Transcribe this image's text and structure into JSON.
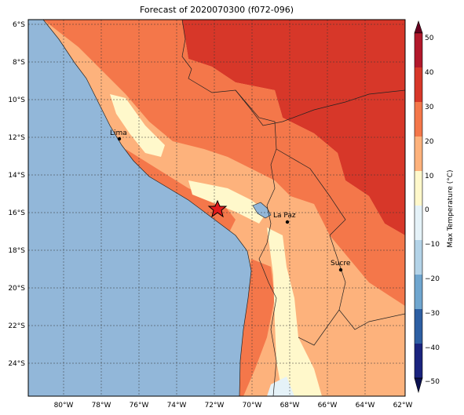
{
  "title": "Forecast of 2020070300 (f072-096)",
  "map": {
    "lon_ticks": [
      "80°W",
      "78°W",
      "76°W",
      "74°W",
      "72°W",
      "70°W",
      "68°W",
      "66°W",
      "64°W",
      "62°W"
    ],
    "lat_ticks": [
      "6°S",
      "8°S",
      "10°S",
      "12°S",
      "14°S",
      "16°S",
      "18°S",
      "20°S",
      "22°S",
      "24°S"
    ],
    "cities": [
      {
        "name": "Lima"
      },
      {
        "name": "La Paz"
      },
      {
        "name": "Sucre"
      }
    ],
    "colors": {
      "ocean": "#92b7d9",
      "t0_10": "#fff8cb",
      "t10_20": "#fdb27c",
      "t20_30": "#f4774a",
      "t30_40": "#d73729"
    }
  },
  "colorbar": {
    "label": "Max Temperature (°C)",
    "ticks": [
      "50",
      "40",
      "30",
      "20",
      "10",
      "0",
      "−10",
      "−20",
      "−30",
      "−40",
      "−50"
    ],
    "colors": [
      "#67001f",
      "#b2182b",
      "#d73729",
      "#f4774a",
      "#fdb27c",
      "#fff8cb",
      "#e5f2f8",
      "#b3d3e8",
      "#6fa6cf",
      "#2d5fa3",
      "#1a237e"
    ]
  }
}
